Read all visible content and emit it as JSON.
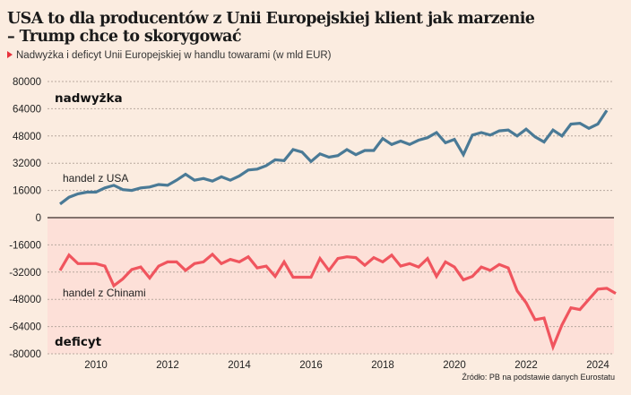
{
  "header": {
    "title_line1": "USA to dla producentów z Unii Europejskiej klient jak marzenie",
    "title_line2": "– Trump chce to skorygować",
    "subtitle": "Nadwyżka i deficyt Unii Europejskiej w handlu towarami (w mld EUR)"
  },
  "source": "Źródło: PB na podstawie danych Eurostatu",
  "colors": {
    "background": "#fbece0",
    "deficit_zone": "#fde0d8",
    "usa_line": "#4a7a96",
    "china_line": "#f0555e",
    "accent": "#e8323c"
  },
  "chart_data": {
    "type": "line",
    "title": "USA to dla producentów z Unii Europejskiej klient jak marzenie – Trump chce to skorygować",
    "subtitle": "Nadwyżka i deficyt Unii Europejskiej w handlu towarami (w mld EUR)",
    "xlabel": "",
    "ylabel": "",
    "ylim": [
      -80000,
      80000
    ],
    "yticks": [
      80000,
      64000,
      48000,
      32000,
      16000,
      0,
      -16000,
      -32000,
      -48000,
      -64000,
      -80000
    ],
    "ytick_labels": [
      "80000",
      "64000",
      "48000",
      "32000",
      "16000",
      "0",
      "-16000",
      "-32000",
      "-48000",
      "-64000",
      "-80000"
    ],
    "xlim": [
      2009.0,
      2024.5
    ],
    "xticks": [
      2010,
      2012,
      2014,
      2016,
      2018,
      2020,
      2022,
      2024
    ],
    "xtick_labels": [
      "2010",
      "2012",
      "2014",
      "2016",
      "2018",
      "2020",
      "2022",
      "2024"
    ],
    "grid": true,
    "zones": [
      {
        "label": "nadwyżka",
        "range": [
          0,
          80000
        ]
      },
      {
        "label": "deficyt",
        "range": [
          -80000,
          0
        ]
      }
    ],
    "x_start": 2009.0,
    "x_step": 0.25,
    "series": [
      {
        "name": "handel z USA",
        "values": [
          8000,
          12000,
          14000,
          15000,
          15000,
          17500,
          19000,
          16500,
          16000,
          17500,
          18000,
          19500,
          19000,
          22000,
          25500,
          22000,
          23000,
          21500,
          24000,
          22000,
          24500,
          28000,
          28500,
          30500,
          34000,
          33500,
          40000,
          38500,
          33000,
          37500,
          35500,
          36500,
          40000,
          37000,
          39500,
          39500,
          46500,
          43000,
          45000,
          43000,
          45500,
          47000,
          50000,
          44000,
          46000,
          37000,
          48500,
          50000,
          48500,
          51000,
          51500,
          48000,
          52000,
          47500,
          44500,
          51500,
          48000,
          55000,
          55500,
          52500,
          55000,
          63000
        ]
      },
      {
        "name": "handel z Chinami",
        "values": [
          -31000,
          -22000,
          -27000,
          -27000,
          -27000,
          -28500,
          -40000,
          -36000,
          -30500,
          -29000,
          -35500,
          -28500,
          -26000,
          -26000,
          -31000,
          -27000,
          -26000,
          -21500,
          -27000,
          -24500,
          -26000,
          -23000,
          -29500,
          -28500,
          -34500,
          -26000,
          -35000,
          -35000,
          -35000,
          -24000,
          -31000,
          -24000,
          -23000,
          -23500,
          -28000,
          -23500,
          -26000,
          -22000,
          -28500,
          -27000,
          -29000,
          -24000,
          -34500,
          -26000,
          -29000,
          -36500,
          -34500,
          -29000,
          -31000,
          -27500,
          -29500,
          -43000,
          -50000,
          -60000,
          -59000,
          -76000,
          -63000,
          -53000,
          -54000,
          -48000,
          -42000,
          -41500,
          -44500
        ]
      }
    ],
    "annotations": [
      "nadwyżka",
      "handel z USA",
      "handel z Chinami",
      "deficyt"
    ]
  }
}
